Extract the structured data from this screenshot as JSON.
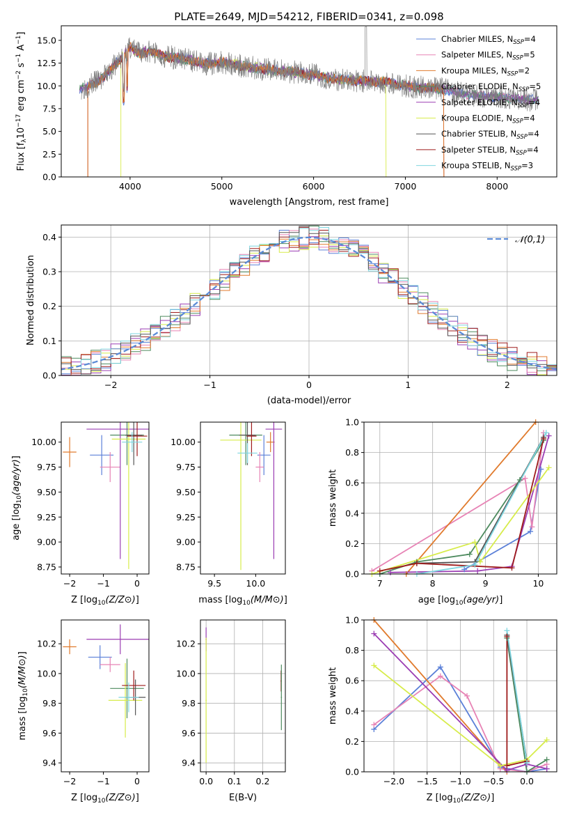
{
  "series": [
    {
      "name": "Chabrier MILES, N_SSP=4",
      "color": "#5b80d8"
    },
    {
      "name": "Salpeter MILES, N_SSP=5",
      "color": "#e783b5"
    },
    {
      "name": "Kroupa MILES, N_SSP=2",
      "color": "#e07a2c"
    },
    {
      "name": "Chabrier ELODIE, N_SSP=5",
      "color": "#4d8a5e"
    },
    {
      "name": "Salpeter ELODIE, N_SSP=4",
      "color": "#9b3db3"
    },
    {
      "name": "Kroupa ELODIE, N_SSP=4",
      "color": "#d7ec4a"
    },
    {
      "name": "Chabrier STELIB, N_SSP=4",
      "color": "#555555"
    },
    {
      "name": "Salpeter STELIB, N_SSP=4",
      "color": "#9e1b1b"
    },
    {
      "name": "Kroupa STELIB, N_SSP=3",
      "color": "#7fd6e0"
    }
  ],
  "chart_data": [
    {
      "id": "spectrum",
      "type": "line",
      "title": "PLATE=2649, MJD=54212, FIBERID=0341, z=0.098",
      "xlabel": "wavelength [Angstrom, rest frame]",
      "ylabel": "Flux [f_λ 10^-17 erg cm^-2 s^-1 A^-1]",
      "xlim": [
        3250,
        8650
      ],
      "ylim": [
        0,
        16.6
      ],
      "xticks": [
        4000,
        5000,
        6000,
        7000,
        8000
      ],
      "yticks": [
        0.0,
        2.5,
        5.0,
        7.5,
        10.0,
        12.5,
        15.0
      ],
      "data_spectrum": {
        "x": [
          3500,
          3700,
          3900,
          4000,
          4100,
          4200,
          4400,
          4600,
          4800,
          5000,
          5200,
          5400,
          5600,
          5800,
          6000,
          6200,
          6400,
          6600,
          6800,
          7000,
          7200,
          7400,
          7600,
          7800,
          8000,
          8200,
          8450
        ],
        "y": [
          9.8,
          10.8,
          13.0,
          14.2,
          13.6,
          13.8,
          13.2,
          13.0,
          12.4,
          12.6,
          12.2,
          11.9,
          11.7,
          11.5,
          11.2,
          10.8,
          10.6,
          10.5,
          10.4,
          10.0,
          9.8,
          9.6,
          9.2,
          8.9,
          8.8,
          8.6,
          8.4
        ]
      },
      "model_cutoffs": [
        {
          "series": "Kroupa MILES, N_SSP=2",
          "x_min": 3540,
          "x_max": 7420
        },
        {
          "series": "Kroupa ELODIE, N_SSP=4",
          "x_min": 3900,
          "x_max": 6790
        },
        {
          "series": "Salpeter STELIB, N_SSP=4",
          "x_min": 3540,
          "x_max": 7420
        }
      ],
      "legend": "top-right",
      "grid": false
    },
    {
      "id": "residuals",
      "type": "line",
      "xlabel": "(data-model)/error",
      "ylabel": "Normed distribution",
      "xlim": [
        -2.5,
        2.5
      ],
      "ylim": [
        0,
        0.435
      ],
      "xticks": [
        -2,
        -1,
        0,
        1,
        2
      ],
      "yticks": [
        0.0,
        0.1,
        0.2,
        0.3,
        0.4
      ],
      "reference": {
        "name": "𝒩(0,1)",
        "mean": 0,
        "sigma": 1,
        "color": "#5b8bd6"
      },
      "histogram_bin_width": 0.1,
      "legend": "top-right",
      "grid": true
    },
    {
      "id": "age_vs_Z",
      "type": "scatter",
      "xlabel": "Z [log10(Z/Z⊙)]",
      "ylabel": "age  [log10(age/yr)]",
      "xlim": [
        -2.25,
        0.35
      ],
      "ylim": [
        8.68,
        10.2
      ],
      "xticks": [
        -2,
        -1,
        0
      ],
      "yticks": [
        8.75,
        9.0,
        9.25,
        9.5,
        9.75,
        10.0
      ],
      "points": [
        {
          "s": 0,
          "x": -1.05,
          "y": 9.87,
          "xerr": 0.35,
          "yerr": 0.2
        },
        {
          "s": 1,
          "x": -0.8,
          "y": 9.75,
          "xerr": 0.3,
          "yerr": 0.15
        },
        {
          "s": 2,
          "x": -2.0,
          "y": 9.9,
          "xerr": 0.2,
          "yerr": 0.15
        },
        {
          "s": 3,
          "x": -0.3,
          "y": 10.07,
          "xerr": 0.5,
          "yerr": 0.3
        },
        {
          "s": 4,
          "x": -0.5,
          "y": 10.13,
          "xerr": 1.0,
          "yerr": 1.3
        },
        {
          "s": 5,
          "x": -0.25,
          "y": 10.03,
          "xerr": 0.5,
          "yerr": 1.3
        },
        {
          "s": 6,
          "x": -0.1,
          "y": 10.07,
          "xerr": 0.25,
          "yerr": 0.3
        },
        {
          "s": 7,
          "x": 0.0,
          "y": 10.06,
          "xerr": 0.3,
          "yerr": 0.2
        },
        {
          "s": 8,
          "x": -0.15,
          "y": 10.0,
          "xerr": 0.3,
          "yerr": 0.1
        }
      ]
    },
    {
      "id": "age_vs_mass",
      "type": "scatter",
      "xlabel": "mass [log10(M/M⊙)]",
      "ylabel": "",
      "xlim": [
        9.33,
        10.36
      ],
      "ylim": [
        8.68,
        10.2
      ],
      "xticks": [
        9.5,
        10.0
      ],
      "yticks": [
        8.75,
        9.0,
        9.25,
        9.5,
        9.75,
        10.0
      ],
      "points": [
        {
          "s": 0,
          "x": 10.1,
          "y": 9.87,
          "xerr": 0.08,
          "yerr": 0.2
        },
        {
          "s": 1,
          "x": 10.05,
          "y": 9.75,
          "xerr": 0.05,
          "yerr": 0.15
        },
        {
          "s": 2,
          "x": 10.18,
          "y": 10.0,
          "xerr": 0.05,
          "yerr": 0.1
        },
        {
          "s": 3,
          "x": 9.88,
          "y": 10.07,
          "xerr": 0.2,
          "yerr": 0.3
        },
        {
          "s": 4,
          "x": 10.22,
          "y": 10.13,
          "xerr": 0.1,
          "yerr": 1.3
        },
        {
          "s": 5,
          "x": 9.82,
          "y": 10.02,
          "xerr": 0.25,
          "yerr": 1.3
        },
        {
          "s": 6,
          "x": 9.9,
          "y": 10.07,
          "xerr": 0.1,
          "yerr": 0.3
        },
        {
          "s": 7,
          "x": 9.95,
          "y": 10.06,
          "xerr": 0.06,
          "yerr": 0.2
        },
        {
          "s": 8,
          "x": 9.9,
          "y": 9.89,
          "xerr": 0.12,
          "yerr": 0.1
        }
      ]
    },
    {
      "id": "weight_vs_age",
      "type": "line",
      "xlabel": "age  [log10(age/yr)]",
      "ylabel": "mass weight",
      "xlim": [
        6.7,
        10.35
      ],
      "ylim": [
        0,
        1.0
      ],
      "xticks": [
        7,
        8,
        9,
        10
      ],
      "yticks": [
        0.0,
        0.2,
        0.4,
        0.6,
        0.8,
        1.0
      ],
      "grid": true,
      "series_points": [
        {
          "s": 0,
          "x": [
            8.6,
            9.85,
            10.05
          ],
          "y": [
            0.03,
            0.28,
            0.69
          ]
        },
        {
          "s": 1,
          "x": [
            6.85,
            9.75,
            9.88,
            10.1
          ],
          "y": [
            0.02,
            0.63,
            0.31,
            0.93
          ]
        },
        {
          "s": 2,
          "x": [
            7.5,
            9.95
          ],
          "y": [
            0.0,
            1.0
          ]
        },
        {
          "s": 3,
          "x": [
            7.0,
            7.7,
            8.7,
            9.65,
            10.1
          ],
          "y": [
            0.0,
            0.08,
            0.13,
            0.62,
            0.88
          ]
        },
        {
          "s": 4,
          "x": [
            7.2,
            8.85,
            9.5,
            10.2
          ],
          "y": [
            0.01,
            0.02,
            0.05,
            0.91
          ]
        },
        {
          "s": 5,
          "x": [
            6.85,
            8.8,
            8.9,
            10.2
          ],
          "y": [
            0.0,
            0.21,
            0.08,
            0.7
          ]
        },
        {
          "s": 6,
          "x": [
            7.7,
            8.8,
            10.1
          ],
          "y": [
            0.07,
            0.08,
            0.9
          ]
        },
        {
          "s": 7,
          "x": [
            7.0,
            7.7,
            9.5,
            10.1
          ],
          "y": [
            0.02,
            0.07,
            0.04,
            0.89
          ]
        },
        {
          "s": 8,
          "x": [
            7.7,
            8.8,
            10.15
          ],
          "y": [
            0.0,
            0.06,
            0.93
          ]
        }
      ]
    },
    {
      "id": "mass_vs_Z",
      "type": "scatter",
      "xlabel": "Z [log10(Z/Z⊙)]",
      "ylabel": "mass [log10(M/M⊙)]",
      "xlim": [
        -2.25,
        0.35
      ],
      "ylim": [
        9.34,
        10.36
      ],
      "xticks": [
        -2,
        -1,
        0
      ],
      "yticks": [
        9.4,
        9.6,
        9.8,
        10.0,
        10.2
      ],
      "points": [
        {
          "s": 0,
          "x": -1.1,
          "y": 10.11,
          "xerr": 0.35,
          "yerr": 0.08
        },
        {
          "s": 1,
          "x": -0.8,
          "y": 10.06,
          "xerr": 0.3,
          "yerr": 0.05
        },
        {
          "s": 2,
          "x": -2.0,
          "y": 10.18,
          "xerr": 0.2,
          "yerr": 0.05
        },
        {
          "s": 3,
          "x": -0.3,
          "y": 9.9,
          "xerr": 0.5,
          "yerr": 0.2
        },
        {
          "s": 4,
          "x": -0.5,
          "y": 10.23,
          "xerr": 1.0,
          "yerr": 0.1
        },
        {
          "s": 5,
          "x": -0.35,
          "y": 9.82,
          "xerr": 0.5,
          "yerr": 0.25
        },
        {
          "s": 6,
          "x": -0.05,
          "y": 9.84,
          "xerr": 0.3,
          "yerr": 0.12
        },
        {
          "s": 7,
          "x": -0.1,
          "y": 9.92,
          "xerr": 0.35,
          "yerr": 0.1
        },
        {
          "s": 8,
          "x": -0.25,
          "y": 9.84,
          "xerr": 0.3,
          "yerr": 0.1
        }
      ]
    },
    {
      "id": "mass_vs_ebv",
      "type": "scatter",
      "xlabel": "E(B-V)",
      "ylabel": "",
      "xlim": [
        -0.02,
        0.28
      ],
      "ylim": [
        9.34,
        10.36
      ],
      "xticks": [
        0.0,
        0.1,
        0.2
      ],
      "yticks": [
        9.4,
        9.6,
        9.8,
        10.0,
        10.2
      ],
      "grid": true,
      "points": [
        {
          "s": 4,
          "x": 0.0,
          "y": 10.23,
          "xerr": 0.002,
          "yerr": 0.08
        },
        {
          "s": 5,
          "x": 0.0,
          "y": 9.82,
          "xerr": 0.002,
          "yerr": 0.42
        },
        {
          "s": 7,
          "x": 0.265,
          "y": 9.95,
          "xerr": 0.002,
          "yerr": 0.07
        },
        {
          "s": 3,
          "x": 0.266,
          "y": 9.84,
          "xerr": 0.002,
          "yerr": 0.22
        }
      ]
    },
    {
      "id": "weight_vs_Z",
      "type": "line",
      "xlabel": "Z [log10(Z/Z⊙)]",
      "ylabel": "mass weight",
      "xlim": [
        -2.45,
        0.45
      ],
      "ylim": [
        0,
        1.0
      ],
      "xticks": [
        -2.0,
        -1.5,
        -1.0,
        -0.5,
        0.0
      ],
      "yticks": [
        0.0,
        0.2,
        0.4,
        0.6,
        0.8,
        1.0
      ],
      "grid": true,
      "series_points": [
        {
          "s": 0,
          "x": [
            -2.3,
            -1.3,
            -0.4,
            0.0,
            0.3
          ],
          "y": [
            0.28,
            0.69,
            0.03,
            0.0,
            0.02
          ]
        },
        {
          "s": 1,
          "x": [
            -2.3,
            -1.3,
            -0.9,
            -0.4,
            0.0,
            0.3
          ],
          "y": [
            0.31,
            0.63,
            0.5,
            0.02,
            0.0,
            0.05
          ]
        },
        {
          "s": 2,
          "x": [
            -2.3,
            -0.3
          ],
          "y": [
            1.0,
            0.0
          ]
        },
        {
          "s": 3,
          "x": [
            -0.3,
            0.0,
            0.3
          ],
          "y": [
            0.88,
            0.0,
            0.08
          ]
        },
        {
          "s": 4,
          "x": [
            -2.3,
            -0.3,
            0.0,
            0.3
          ],
          "y": [
            0.91,
            0.01,
            0.05,
            0.02
          ]
        },
        {
          "s": 5,
          "x": [
            -2.3,
            -0.4,
            0.0,
            0.3
          ],
          "y": [
            0.7,
            0.04,
            0.08,
            0.21
          ]
        },
        {
          "s": 6,
          "x": [
            -0.3,
            0.0
          ],
          "y": [
            0.9,
            0.07
          ]
        },
        {
          "s": 7,
          "x": [
            -0.3,
            -0.3,
            0.0
          ],
          "y": [
            0.89,
            0.04,
            0.07
          ]
        },
        {
          "s": 8,
          "x": [
            -0.3,
            0.0
          ],
          "y": [
            0.93,
            0.06
          ]
        }
      ]
    }
  ]
}
